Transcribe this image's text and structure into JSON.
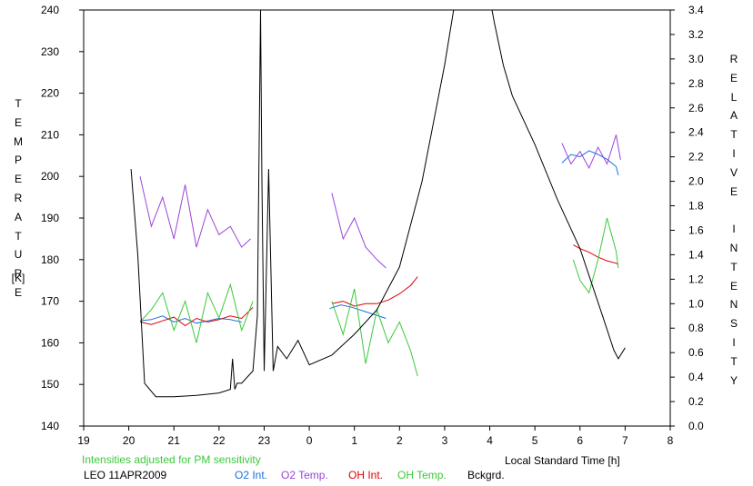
{
  "chart_data": {
    "type": "line",
    "left_axis_title": "TEMPERATURE",
    "left_axis_unit": "[K]",
    "right_axis_title": "RELATIVE INTENSITY",
    "xlabel": "Local Standard Time [h]",
    "xlim": [
      19,
      32
    ],
    "x_tick_labels": [
      "19",
      "20",
      "21",
      "22",
      "23",
      "0",
      "1",
      "2",
      "3",
      "4",
      "5",
      "6",
      "7",
      "8"
    ],
    "ylim_left": [
      140,
      240
    ],
    "y_left_ticks": [
      140,
      150,
      160,
      170,
      180,
      190,
      200,
      210,
      220,
      230,
      240
    ],
    "ylim_right": [
      0.0,
      3.4
    ],
    "y_right_ticks": [
      "0.0",
      "0.2",
      "0.4",
      "0.6",
      "0.8",
      "1.0",
      "1.2",
      "1.4",
      "1.6",
      "1.8",
      "2.0",
      "2.2",
      "2.4",
      "2.6",
      "2.8",
      "3.0",
      "3.2",
      "3.4"
    ],
    "note": "Intensities adjusted for PM sensitivity",
    "station": "LEO 11APR2009",
    "series": [
      {
        "name": "O2 Int.",
        "color": "#1e6ee0",
        "axis": "right",
        "segments": [
          {
            "x": [
              20.25,
              20.5,
              20.75,
              21.0,
              21.25,
              21.5,
              21.75,
              22.0,
              22.25,
              22.5
            ],
            "y": [
              0.86,
              0.87,
              0.9,
              0.85,
              0.88,
              0.84,
              0.86,
              0.88,
              0.87,
              0.85
            ]
          },
          {
            "x": [
              24.45,
              24.7,
              24.95,
              25.2,
              25.45,
              25.7
            ],
            "y": [
              0.96,
              0.99,
              0.97,
              0.94,
              0.91,
              0.88
            ]
          },
          {
            "x": [
              29.6,
              29.8,
              30.0,
              30.2,
              30.4,
              30.6,
              30.8,
              30.85
            ],
            "y": [
              2.15,
              2.22,
              2.2,
              2.25,
              2.22,
              2.18,
              2.12,
              2.05
            ]
          }
        ]
      },
      {
        "name": "O2 Temp.",
        "color": "#9a45d8",
        "axis": "left",
        "segments": [
          {
            "x": [
              20.25,
              20.5,
              20.75,
              21.0,
              21.25,
              21.5,
              21.75,
              22.0,
              22.25,
              22.5,
              22.7
            ],
            "y": [
              200,
              188,
              195,
              185,
              198,
              183,
              192,
              186,
              188,
              183,
              185
            ]
          },
          {
            "x": [
              24.5,
              24.75,
              25.0,
              25.25,
              25.5,
              25.7
            ],
            "y": [
              196,
              185,
              190,
              183,
              180,
              178
            ]
          },
          {
            "x": [
              29.6,
              29.8,
              30.0,
              30.2,
              30.4,
              30.6,
              30.8,
              30.9
            ],
            "y": [
              208,
              203,
              206,
              202,
              207,
              203,
              210,
              204
            ]
          }
        ]
      },
      {
        "name": "OH Int.",
        "color": "#e00000",
        "axis": "right",
        "segments": [
          {
            "x": [
              20.25,
              20.5,
              20.75,
              21.0,
              21.25,
              21.5,
              21.75,
              22.0,
              22.25,
              22.5,
              22.75
            ],
            "y": [
              0.85,
              0.83,
              0.86,
              0.89,
              0.82,
              0.88,
              0.85,
              0.87,
              0.9,
              0.88,
              0.97
            ]
          },
          {
            "x": [
              24.5,
              24.75,
              25.0,
              25.25,
              25.5,
              25.75,
              26.0,
              26.25,
              26.4
            ],
            "y": [
              1.0,
              1.02,
              0.98,
              1.0,
              1.0,
              1.03,
              1.08,
              1.15,
              1.22
            ]
          },
          {
            "x": [
              29.85,
              30.0,
              30.2,
              30.4,
              30.6,
              30.8,
              30.85
            ],
            "y": [
              1.48,
              1.45,
              1.42,
              1.38,
              1.35,
              1.33,
              1.32
            ]
          }
        ]
      },
      {
        "name": "OH Temp.",
        "color": "#3cc83c",
        "axis": "left",
        "segments": [
          {
            "x": [
              20.25,
              20.5,
              20.75,
              21.0,
              21.25,
              21.5,
              21.75,
              22.0,
              22.25,
              22.5,
              22.75
            ],
            "y": [
              165,
              168,
              172,
              163,
              170,
              160,
              172,
              166,
              174,
              163,
              170
            ]
          },
          {
            "x": [
              24.5,
              24.75,
              25.0,
              25.25,
              25.5,
              25.75,
              26.0,
              26.25,
              26.4
            ],
            "y": [
              170,
              162,
              173,
              155,
              168,
              160,
              165,
              158,
              152
            ]
          },
          {
            "x": [
              29.85,
              30.0,
              30.2,
              30.4,
              30.6,
              30.8,
              30.85
            ],
            "y": [
              180,
              175,
              172,
              180,
              190,
              182,
              178
            ]
          }
        ]
      },
      {
        "name": "Bckgrd.",
        "color": "#000000",
        "axis": "right",
        "segments": [
          {
            "x": [
              20.05,
              20.2,
              20.35,
              20.6,
              21.0,
              21.5,
              22.0,
              22.25,
              22.3,
              22.35,
              22.4,
              22.5,
              22.75,
              22.85,
              22.92,
              22.95,
              23.0,
              23.1,
              23.2,
              23.3,
              23.5,
              23.75,
              24.0,
              24.5,
              25.0,
              25.5,
              26.0,
              26.5,
              27.0,
              27.2,
              27.25
            ],
            "y": [
              2.1,
              1.4,
              0.35,
              0.24,
              0.24,
              0.25,
              0.27,
              0.3,
              0.55,
              0.3,
              0.35,
              0.35,
              0.45,
              0.9,
              3.4,
              2.0,
              0.45,
              2.1,
              0.45,
              0.65,
              0.55,
              0.7,
              0.5,
              0.58,
              0.75,
              0.95,
              1.3,
              2.0,
              2.95,
              3.4,
              3.4
            ]
          },
          {
            "x": [
              28.05,
              28.1,
              28.3,
              28.5,
              29.0,
              29.5,
              30.0,
              30.5,
              30.75,
              30.85,
              31.0
            ],
            "y": [
              3.4,
              3.3,
              2.95,
              2.7,
              2.3,
              1.85,
              1.45,
              0.9,
              0.62,
              0.55,
              0.64
            ]
          }
        ]
      }
    ]
  }
}
